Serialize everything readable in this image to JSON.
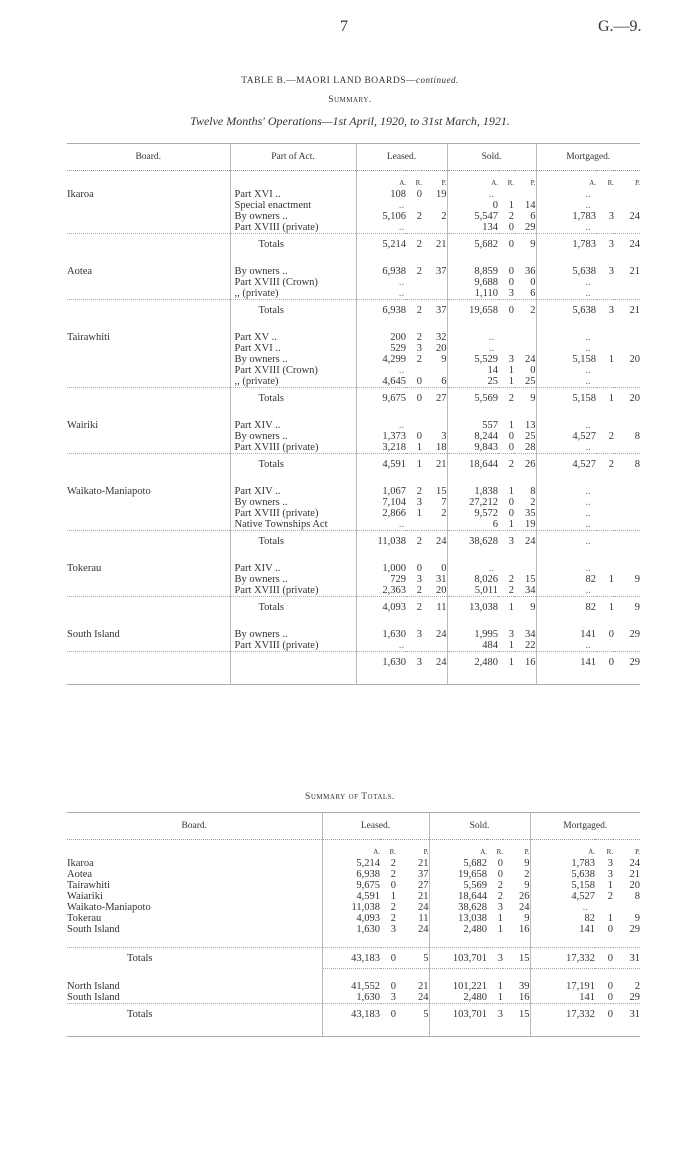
{
  "page": {
    "number": "7",
    "reference": "G.—9."
  },
  "title": {
    "main": "TABLE B.—MAORI LAND BOARDS—",
    "continued": "continued.",
    "summary": "Summary.",
    "period": "Twelve Months' Operations—1st April, 1920, to 31st March, 1921."
  },
  "table1": {
    "headers": [
      "Board.",
      "Part of Act.",
      "Leased.",
      "Sold.",
      "Mortgaged."
    ],
    "units": [
      "A.",
      "R.",
      "P."
    ],
    "totals_label": "Totals",
    "groups": [
      {
        "board": "Ikaroa",
        "rows": [
          {
            "part": "Part XVI ..",
            "leased": [
              "108",
              "0",
              "19"
            ],
            "sold": "..",
            "mortgaged": ".."
          },
          {
            "part": "Special enactment",
            "leased": "..",
            "sold": [
              "0",
              "1",
              "14"
            ],
            "mortgaged": ".."
          },
          {
            "part": "By owners ..",
            "leased": [
              "5,106",
              "2",
              "2"
            ],
            "sold": [
              "5,547",
              "2",
              "6"
            ],
            "mortgaged": [
              "1,783",
              "3",
              "24"
            ]
          },
          {
            "part": "Part XVIII (private)",
            "leased": "..",
            "sold": [
              "134",
              "0",
              "29"
            ],
            "mortgaged": ".."
          }
        ],
        "totals": {
          "leased": [
            "5,214",
            "2",
            "21"
          ],
          "sold": [
            "5,682",
            "0",
            "9"
          ],
          "mortgaged": [
            "1,783",
            "3",
            "24"
          ]
        }
      },
      {
        "board": "Aotea",
        "rows": [
          {
            "part": "By owners ..",
            "leased": [
              "6,938",
              "2",
              "37"
            ],
            "sold": [
              "8,859",
              "0",
              "36"
            ],
            "mortgaged": [
              "5,638",
              "3",
              "21"
            ]
          },
          {
            "part": "Part XVIII (Crown)",
            "leased": "..",
            "sold": [
              "9,688",
              "0",
              "0"
            ],
            "mortgaged": ".."
          },
          {
            "part": ",,          (private)",
            "leased": "..",
            "sold": [
              "1,110",
              "3",
              "6"
            ],
            "mortgaged": ".."
          }
        ],
        "totals": {
          "leased": [
            "6,938",
            "2",
            "37"
          ],
          "sold": [
            "19,658",
            "0",
            "2"
          ],
          "mortgaged": [
            "5,638",
            "3",
            "21"
          ]
        }
      },
      {
        "board": "Tairawhiti",
        "rows": [
          {
            "part": "Part XV ..",
            "leased": [
              "200",
              "2",
              "32"
            ],
            "sold": "..",
            "mortgaged": ".."
          },
          {
            "part": "Part XVI ..",
            "leased": [
              "529",
              "3",
              "20"
            ],
            "sold": "..",
            "mortgaged": ".."
          },
          {
            "part": "By owners ..",
            "leased": [
              "4,299",
              "2",
              "9"
            ],
            "sold": [
              "5,529",
              "3",
              "24"
            ],
            "mortgaged": [
              "5,158",
              "1",
              "20"
            ]
          },
          {
            "part": "Part XVIII (Crown)",
            "leased": "..",
            "sold": [
              "14",
              "1",
              "0"
            ],
            "mortgaged": ".."
          },
          {
            "part": ",,          (private)",
            "leased": [
              "4,645",
              "0",
              "6"
            ],
            "sold": [
              "25",
              "1",
              "25"
            ],
            "mortgaged": ".."
          }
        ],
        "totals": {
          "leased": [
            "9,675",
            "0",
            "27"
          ],
          "sold": [
            "5,569",
            "2",
            "9"
          ],
          "mortgaged": [
            "5,158",
            "1",
            "20"
          ]
        }
      },
      {
        "board": "Wairiki",
        "rows": [
          {
            "part": "Part XIV ..",
            "leased": "..",
            "sold": [
              "557",
              "1",
              "13"
            ],
            "mortgaged": ".."
          },
          {
            "part": "By owners ..",
            "leased": [
              "1,373",
              "0",
              "3"
            ],
            "sold": [
              "8,244",
              "0",
              "25"
            ],
            "mortgaged": [
              "4,527",
              "2",
              "8"
            ]
          },
          {
            "part": "Part XVIII (private)",
            "leased": [
              "3,218",
              "1",
              "18"
            ],
            "sold": [
              "9,843",
              "0",
              "28"
            ],
            "mortgaged": ".."
          }
        ],
        "totals": {
          "leased": [
            "4,591",
            "1",
            "21"
          ],
          "sold": [
            "18,644",
            "2",
            "26"
          ],
          "mortgaged": [
            "4,527",
            "2",
            "8"
          ]
        }
      },
      {
        "board": "Waikato-Maniapoto",
        "rows": [
          {
            "part": "Part XIV ..",
            "leased": [
              "1,067",
              "2",
              "15"
            ],
            "sold": [
              "1,838",
              "1",
              "8"
            ],
            "mortgaged": ".."
          },
          {
            "part": "By owners ..",
            "leased": [
              "7,104",
              "3",
              "7"
            ],
            "sold": [
              "27,212",
              "0",
              "2"
            ],
            "mortgaged": ".."
          },
          {
            "part": "Part XVIII (private)",
            "leased": [
              "2,866",
              "1",
              "2"
            ],
            "sold": [
              "9,572",
              "0",
              "35"
            ],
            "mortgaged": ".."
          },
          {
            "part": "Native Townships Act",
            "leased": "..",
            "sold": [
              "6",
              "1",
              "19"
            ],
            "mortgaged": ".."
          }
        ],
        "totals": {
          "leased": [
            "11,038",
            "2",
            "24"
          ],
          "sold": [
            "38,628",
            "3",
            "24"
          ],
          "mortgaged": ".."
        }
      },
      {
        "board": "Tokerau",
        "rows": [
          {
            "part": "Part XIV ..",
            "leased": [
              "1,000",
              "0",
              "0"
            ],
            "sold": "..",
            "mortgaged": ".."
          },
          {
            "part": "By owners ..",
            "leased": [
              "729",
              "3",
              "31"
            ],
            "sold": [
              "8,026",
              "2",
              "15"
            ],
            "mortgaged": [
              "82",
              "1",
              "9"
            ]
          },
          {
            "part": "Part XVIII (private)",
            "leased": [
              "2,363",
              "2",
              "20"
            ],
            "sold": [
              "5,011",
              "2",
              "34"
            ],
            "mortgaged": ".."
          }
        ],
        "totals": {
          "leased": [
            "4,093",
            "2",
            "11"
          ],
          "sold": [
            "13,038",
            "1",
            "9"
          ],
          "mortgaged": [
            "82",
            "1",
            "9"
          ]
        }
      },
      {
        "board": "South Island",
        "rows": [
          {
            "part": "By owners ..",
            "leased": [
              "1,630",
              "3",
              "24"
            ],
            "sold": [
              "1,995",
              "3",
              "34"
            ],
            "mortgaged": [
              "141",
              "0",
              "29"
            ]
          },
          {
            "part": "Part XVIII (private)",
            "leased": "..",
            "sold": [
              "484",
              "1",
              "22"
            ],
            "mortgaged": ".."
          }
        ],
        "totals_label": "",
        "totals": {
          "leased": [
            "1,630",
            "3",
            "24"
          ],
          "sold": [
            "2,480",
            "1",
            "16"
          ],
          "mortgaged": [
            "141",
            "0",
            "29"
          ]
        }
      }
    ]
  },
  "table2": {
    "title": "Summary of Totals.",
    "headers": [
      "Board.",
      "Leased.",
      "Sold.",
      "Mortgaged."
    ],
    "units": [
      "A.",
      "R.",
      "P."
    ],
    "rows": [
      {
        "board": "Ikaroa",
        "leased": [
          "5,214",
          "2",
          "21"
        ],
        "sold": [
          "5,682",
          "0",
          "9"
        ],
        "mortgaged": [
          "1,783",
          "3",
          "24"
        ]
      },
      {
        "board": "Aotea",
        "leased": [
          "6,938",
          "2",
          "37"
        ],
        "sold": [
          "19,658",
          "0",
          "2"
        ],
        "mortgaged": [
          "5,638",
          "3",
          "21"
        ]
      },
      {
        "board": "Tairawhiti",
        "leased": [
          "9,675",
          "0",
          "27"
        ],
        "sold": [
          "5,569",
          "2",
          "9"
        ],
        "mortgaged": [
          "5,158",
          "1",
          "20"
        ]
      },
      {
        "board": "Waiariki",
        "leased": [
          "4,591",
          "1",
          "21"
        ],
        "sold": [
          "18,644",
          "2",
          "26"
        ],
        "mortgaged": [
          "4,527",
          "2",
          "8"
        ]
      },
      {
        "board": "Waikato-Maniapoto",
        "leased": [
          "11,038",
          "2",
          "24"
        ],
        "sold": [
          "38,628",
          "3",
          "24"
        ],
        "mortgaged": ".."
      },
      {
        "board": "Tokerau",
        "leased": [
          "4,093",
          "2",
          "11"
        ],
        "sold": [
          "13,038",
          "1",
          "9"
        ],
        "mortgaged": [
          "82",
          "1",
          "9"
        ]
      },
      {
        "board": "South Island",
        "leased": [
          "1,630",
          "3",
          "24"
        ],
        "sold": [
          "2,480",
          "1",
          "16"
        ],
        "mortgaged": [
          "141",
          "0",
          "29"
        ]
      }
    ],
    "totals": {
      "board": "Totals",
      "leased": [
        "43,183",
        "0",
        "5"
      ],
      "sold": [
        "103,701",
        "3",
        "15"
      ],
      "mortgaged": [
        "17,332",
        "0",
        "31"
      ]
    },
    "island_rows": [
      {
        "board": "North Island",
        "leased": [
          "41,552",
          "0",
          "21"
        ],
        "sold": [
          "101,221",
          "1",
          "39"
        ],
        "mortgaged": [
          "17,191",
          "0",
          "2"
        ]
      },
      {
        "board": "South Island",
        "leased": [
          "1,630",
          "3",
          "24"
        ],
        "sold": [
          "2,480",
          "1",
          "16"
        ],
        "mortgaged": [
          "141",
          "0",
          "29"
        ]
      }
    ],
    "grand_totals": {
      "board": "Totals",
      "leased": [
        "43,183",
        "0",
        "5"
      ],
      "sold": [
        "103,701",
        "3",
        "15"
      ],
      "mortgaged": [
        "17,332",
        "0",
        "31"
      ]
    }
  }
}
